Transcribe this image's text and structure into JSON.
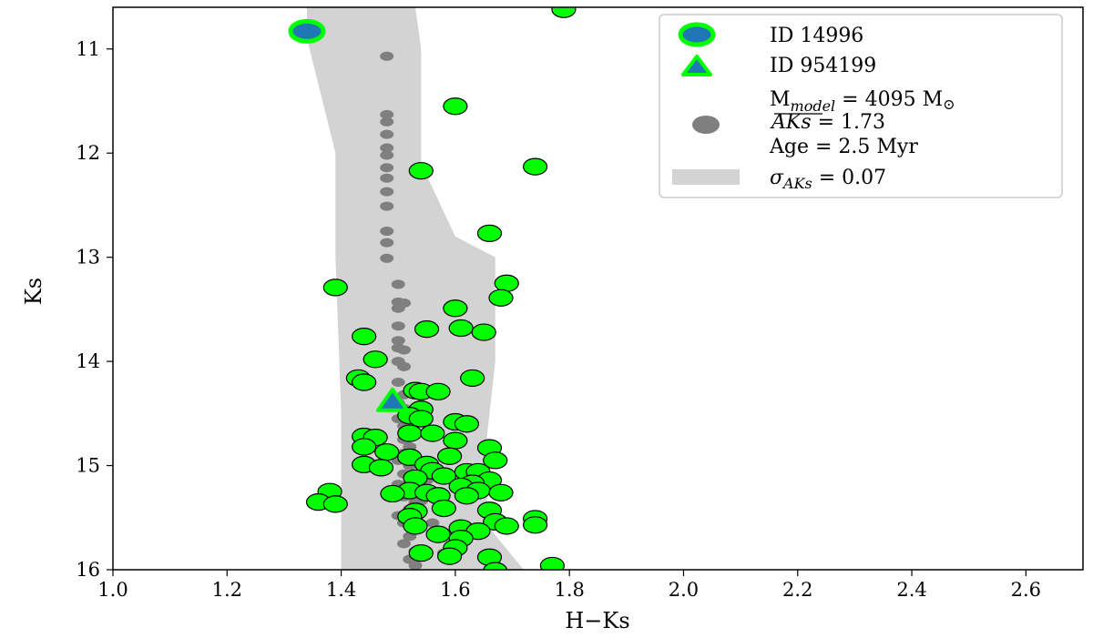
{
  "chart_data": {
    "type": "scatter",
    "xlabel": "H−Ks",
    "ylabel": "Ks",
    "xlim": [
      1.0,
      2.7
    ],
    "ylim": [
      16.0,
      10.6
    ],
    "y_inverted": true,
    "x_ticks": [
      1.0,
      1.2,
      1.4,
      1.6,
      1.8,
      2.0,
      2.2,
      2.4,
      2.6
    ],
    "x_tick_labels": [
      "1.0",
      "1.2",
      "1.4",
      "1.6",
      "1.8",
      "2.0",
      "2.2",
      "2.4",
      "2.6"
    ],
    "y_ticks": [
      11,
      12,
      13,
      14,
      15,
      16
    ],
    "y_tick_labels": [
      "11",
      "12",
      "13",
      "14",
      "15",
      "16"
    ],
    "grid": false,
    "legend_position": "top-right",
    "colors": {
      "observed": "#00ff00",
      "highlight_fill": "#1f77b4",
      "model": "#7f7f7f",
      "band": "#d3d3d3"
    },
    "legend": {
      "items": [
        {
          "key": "id14996",
          "label": "ID 14996",
          "marker": "circle"
        },
        {
          "key": "id954199",
          "label": "ID 954199",
          "marker": "triangle"
        },
        {
          "key": "model",
          "marker": "grey-circle",
          "lines": [
            "M",
            "model",
            " = 4095 M",
            "⊙",
            "AKs",
            " = 1.73",
            "Age = 2.5 Myr"
          ]
        },
        {
          "key": "band",
          "label_prefix": "σ",
          "label_sub": "AKs",
          "label_suffix": " = 0.07",
          "marker": "band"
        }
      ]
    },
    "band": {
      "name": "σAKs = 0.07",
      "left_edge": [
        [
          1.34,
          10.6
        ],
        [
          1.34,
          10.9
        ],
        [
          1.39,
          12.0
        ],
        [
          1.39,
          13.0
        ],
        [
          1.4,
          14.5
        ],
        [
          1.4,
          16.0
        ]
      ],
      "right_edge": [
        [
          1.53,
          10.6
        ],
        [
          1.54,
          11.0
        ],
        [
          1.54,
          12.1
        ],
        [
          1.6,
          12.8
        ],
        [
          1.67,
          13.0
        ],
        [
          1.67,
          14.0
        ],
        [
          1.65,
          15.0
        ],
        [
          1.66,
          15.6
        ],
        [
          1.72,
          16.0
        ]
      ]
    },
    "series": [
      {
        "name": "ID 14996",
        "marker": "circle",
        "points": [
          [
            1.34,
            10.83
          ]
        ]
      },
      {
        "name": "ID 954199",
        "marker": "triangle",
        "points": [
          [
            1.49,
            14.39
          ]
        ]
      },
      {
        "marker": "grey-circle",
        "points": [
          [
            1.48,
            11.07
          ],
          [
            1.48,
            11.63
          ],
          [
            1.48,
            11.7
          ],
          [
            1.48,
            11.82
          ],
          [
            1.48,
            11.95
          ],
          [
            1.48,
            12.02
          ],
          [
            1.48,
            12.14
          ],
          [
            1.48,
            12.24
          ],
          [
            1.48,
            12.37
          ],
          [
            1.48,
            12.51
          ],
          [
            1.48,
            12.75
          ],
          [
            1.48,
            12.86
          ],
          [
            1.48,
            13.01
          ],
          [
            1.5,
            13.26
          ],
          [
            1.5,
            13.43
          ],
          [
            1.51,
            13.44
          ],
          [
            1.5,
            13.49
          ],
          [
            1.5,
            13.66
          ],
          [
            1.5,
            13.8
          ],
          [
            1.5,
            13.87
          ],
          [
            1.51,
            13.89
          ],
          [
            1.5,
            14.0
          ],
          [
            1.51,
            14.05
          ],
          [
            1.5,
            14.2
          ],
          [
            1.51,
            14.32
          ],
          [
            1.5,
            14.4
          ],
          [
            1.51,
            14.45
          ],
          [
            1.52,
            14.5
          ],
          [
            1.5,
            14.55
          ],
          [
            1.51,
            14.62
          ],
          [
            1.52,
            14.68
          ],
          [
            1.51,
            14.75
          ],
          [
            1.52,
            14.82
          ],
          [
            1.51,
            14.88
          ],
          [
            1.5,
            14.95
          ],
          [
            1.52,
            15.0
          ],
          [
            1.51,
            15.08
          ],
          [
            1.53,
            15.1
          ],
          [
            1.5,
            15.18
          ],
          [
            1.52,
            15.22
          ],
          [
            1.51,
            15.3
          ],
          [
            1.53,
            15.35
          ],
          [
            1.52,
            15.42
          ],
          [
            1.5,
            15.48
          ],
          [
            1.51,
            15.55
          ],
          [
            1.53,
            15.6
          ],
          [
            1.52,
            15.68
          ],
          [
            1.51,
            15.75
          ],
          [
            1.53,
            15.82
          ],
          [
            1.52,
            15.9
          ],
          [
            1.53,
            15.96
          ],
          [
            1.56,
            15.55
          ],
          [
            1.58,
            15.84
          ],
          [
            1.55,
            15.14
          ],
          [
            1.54,
            15.34
          ]
        ]
      },
      {
        "marker": "circle",
        "points": [
          [
            1.79,
            10.62
          ],
          [
            1.6,
            11.55
          ],
          [
            1.74,
            12.13
          ],
          [
            1.54,
            12.17
          ],
          [
            1.66,
            12.77
          ],
          [
            1.69,
            13.25
          ],
          [
            1.39,
            13.29
          ],
          [
            1.68,
            13.39
          ],
          [
            1.6,
            13.49
          ],
          [
            1.55,
            13.69
          ],
          [
            1.61,
            13.68
          ],
          [
            1.65,
            13.72
          ],
          [
            1.44,
            13.76
          ],
          [
            1.46,
            13.98
          ],
          [
            1.63,
            14.16
          ],
          [
            1.43,
            14.16
          ],
          [
            1.44,
            14.2
          ],
          [
            1.53,
            14.28
          ],
          [
            1.54,
            14.29
          ],
          [
            1.57,
            14.29
          ],
          [
            1.54,
            14.46
          ],
          [
            1.52,
            14.52
          ],
          [
            1.54,
            14.55
          ],
          [
            1.6,
            14.58
          ],
          [
            1.62,
            14.6
          ],
          [
            1.52,
            14.69
          ],
          [
            1.56,
            14.69
          ],
          [
            1.44,
            14.72
          ],
          [
            1.46,
            14.73
          ],
          [
            1.6,
            14.76
          ],
          [
            1.44,
            14.82
          ],
          [
            1.48,
            14.87
          ],
          [
            1.59,
            14.91
          ],
          [
            1.66,
            14.83
          ],
          [
            1.52,
            14.92
          ],
          [
            1.67,
            14.95
          ],
          [
            1.44,
            14.99
          ],
          [
            1.55,
            14.99
          ],
          [
            1.47,
            15.02
          ],
          [
            1.56,
            15.05
          ],
          [
            1.62,
            15.06
          ],
          [
            1.64,
            15.06
          ],
          [
            1.53,
            15.12
          ],
          [
            1.58,
            15.1
          ],
          [
            1.66,
            15.14
          ],
          [
            1.63,
            15.17
          ],
          [
            1.61,
            15.2
          ],
          [
            1.52,
            15.24
          ],
          [
            1.64,
            15.24
          ],
          [
            1.38,
            15.25
          ],
          [
            1.68,
            15.26
          ],
          [
            1.49,
            15.27
          ],
          [
            1.55,
            15.26
          ],
          [
            1.57,
            15.29
          ],
          [
            1.62,
            15.29
          ],
          [
            1.36,
            15.35
          ],
          [
            1.39,
            15.37
          ],
          [
            1.58,
            15.41
          ],
          [
            1.53,
            15.44
          ],
          [
            1.66,
            15.43
          ],
          [
            1.52,
            15.49
          ],
          [
            1.74,
            15.51
          ],
          [
            1.67,
            15.54
          ],
          [
            1.74,
            15.57
          ],
          [
            1.69,
            15.58
          ],
          [
            1.53,
            15.58
          ],
          [
            1.61,
            15.6
          ],
          [
            1.64,
            15.63
          ],
          [
            1.57,
            15.66
          ],
          [
            1.61,
            15.7
          ],
          [
            1.6,
            15.79
          ],
          [
            1.54,
            15.84
          ],
          [
            1.59,
            15.87
          ],
          [
            1.66,
            15.88
          ],
          [
            1.77,
            15.96
          ],
          [
            1.67,
            16.01
          ]
        ]
      }
    ]
  }
}
